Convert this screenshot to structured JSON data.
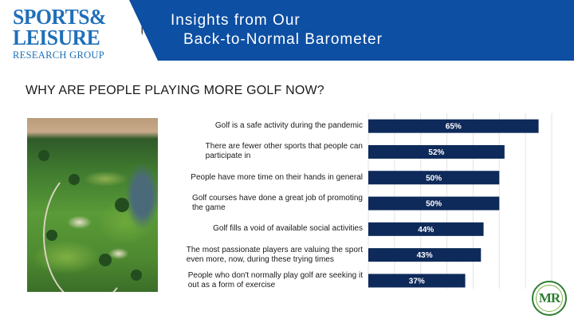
{
  "logo": {
    "line1": "SPORTS",
    "ampersand": "&",
    "line2": "LEISURE",
    "line3": "RESEARCH GROUP"
  },
  "banner": {
    "title_line1": "Insights from Our",
    "title_line2": "Back-to-Normal Barometer"
  },
  "question": "WHY ARE PEOPLE PLAYING MORE GOLF NOW?",
  "badge": {
    "text": "MR"
  },
  "colors": {
    "bar": "#0e2a5a",
    "banner": "#0d4fa3",
    "logo": "#1f6fb8",
    "badge": "#2e7d32"
  },
  "chart_data": {
    "type": "bar",
    "orientation": "horizontal",
    "categories": [
      [
        "Golf is a safe activity during the pandemic"
      ],
      [
        "There are fewer other sports that people can",
        "participate in"
      ],
      [
        "People have more time on their hands in general"
      ],
      [
        "Golf courses have done a great job of promoting",
        "the game"
      ],
      [
        "Golf fills a void of available social activities"
      ],
      [
        "The most passionate players are valuing the sport",
        "even more, now, during these trying times"
      ],
      [
        "People who don't normally play golf are seeking it",
        "out as a form of exercise"
      ]
    ],
    "values": [
      65,
      52,
      50,
      50,
      44,
      43,
      37
    ],
    "data_labels": [
      "65%",
      "52%",
      "50%",
      "50%",
      "44%",
      "43%",
      "37%"
    ],
    "xlim": [
      0,
      70
    ],
    "grid": true
  }
}
